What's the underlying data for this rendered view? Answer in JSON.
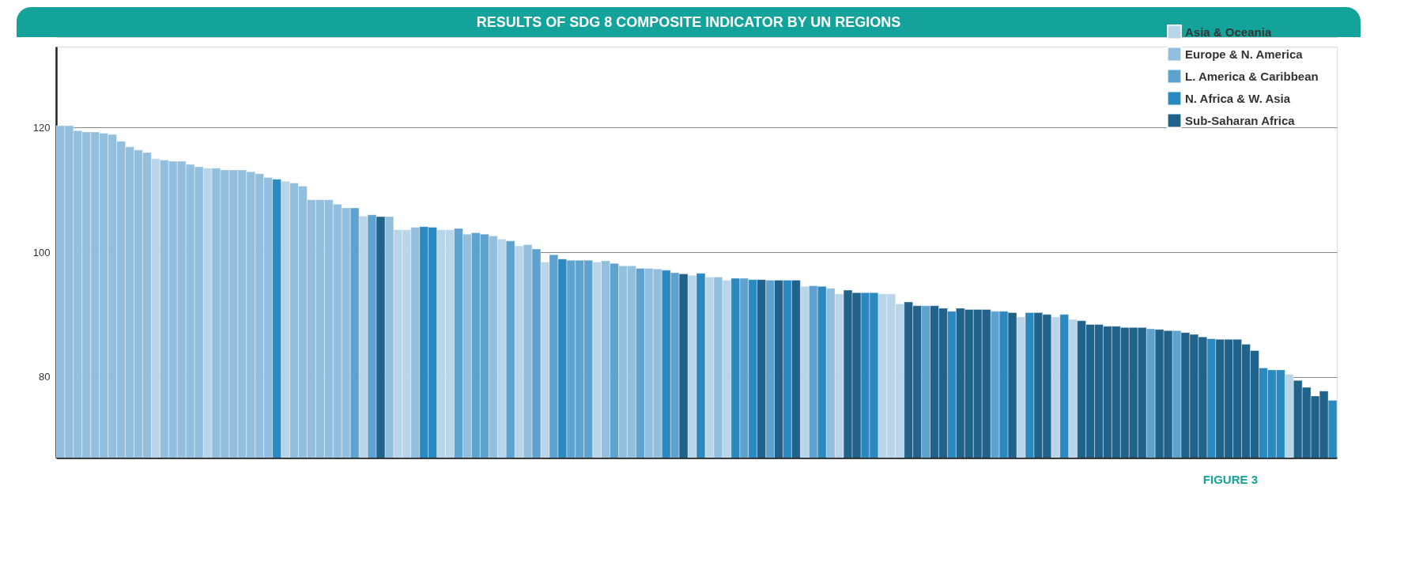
{
  "chart_data": {
    "type": "bar",
    "title": "RESULTS OF SDG 8 COMPOSITE INDICATOR BY UN REGIONS",
    "annotations": [
      "FIGURE 3"
    ],
    "categories": [
      null,
      null,
      null,
      null,
      null,
      null,
      null,
      null,
      null,
      null,
      null,
      null,
      null,
      null,
      null,
      null,
      null,
      null,
      null,
      null,
      null,
      null,
      null,
      null,
      null,
      null,
      null,
      null,
      null,
      null,
      null,
      null,
      null,
      null,
      null,
      null,
      null,
      null,
      null,
      null,
      null,
      null,
      null,
      null,
      null,
      null,
      null,
      null,
      null,
      null,
      null,
      null,
      null,
      null,
      null,
      null,
      null,
      null,
      null,
      null,
      null,
      null,
      null,
      null,
      null,
      null,
      null,
      null,
      null,
      null,
      null,
      null,
      null,
      null,
      null,
      null,
      null,
      null,
      null,
      null,
      null,
      null,
      null,
      null,
      null,
      null,
      null,
      null,
      null,
      null,
      null,
      null,
      null,
      null,
      null,
      null,
      null,
      null,
      null,
      null,
      null,
      null,
      null,
      null,
      null,
      null,
      null,
      null,
      null,
      null,
      null,
      null,
      null,
      null,
      null,
      null,
      null,
      null,
      null,
      null,
      null,
      null,
      null,
      null,
      null,
      null,
      null,
      null,
      null,
      null,
      null,
      null,
      null,
      null,
      null,
      null,
      null,
      null,
      null,
      null,
      null,
      null,
      null,
      null,
      null,
      null,
      null,
      null
    ],
    "series": [
      {
        "name": "Asia & Oceania",
        "color": "#b9d5ea",
        "values": [
          null,
          null,
          null,
          null,
          null,
          null,
          null,
          null,
          null,
          null,
          null,
          115.0,
          null,
          null,
          null,
          null,
          null,
          113.5,
          null,
          null,
          null,
          null,
          null,
          null,
          null,
          null,
          111.4,
          null,
          null,
          null,
          null,
          null,
          null,
          null,
          null,
          105.8,
          null,
          null,
          null,
          103.6,
          103.6,
          null,
          null,
          null,
          103.6,
          103.6,
          null,
          null,
          null,
          null,
          null,
          102.1,
          null,
          101.0,
          null,
          null,
          98.4,
          null,
          null,
          null,
          null,
          null,
          98.4,
          null,
          null,
          null,
          null,
          null,
          null,
          null,
          null,
          null,
          null,
          96.3,
          null,
          96.0,
          null,
          95.5,
          null,
          null,
          null,
          null,
          null,
          null,
          null,
          null,
          94.5,
          null,
          null,
          null,
          93.3,
          null,
          null,
          null,
          null,
          93.3,
          93.3,
          91.7,
          null,
          null,
          null,
          null,
          null,
          null,
          null,
          null,
          null,
          null,
          null,
          null,
          null,
          89.6,
          null,
          null,
          null,
          89.6,
          null,
          89.2,
          null,
          null,
          null,
          null,
          null,
          null,
          null,
          null,
          null,
          null,
          null,
          null,
          null,
          null,
          null,
          null,
          null,
          null,
          null,
          null,
          null,
          null,
          null,
          null,
          80.4,
          null,
          null,
          null,
          null,
          null
        ]
      },
      {
        "name": "Europe & N. America",
        "color": "#92bfde",
        "values": [
          120.3,
          120.3,
          119.5,
          119.3,
          119.3,
          119.1,
          118.9,
          117.8,
          116.9,
          116.4,
          116.0,
          null,
          114.8,
          114.6,
          114.6,
          114.1,
          113.7,
          null,
          113.5,
          113.2,
          113.2,
          113.2,
          112.9,
          112.6,
          112.0,
          null,
          null,
          111.1,
          110.6,
          108.4,
          108.4,
          108.4,
          107.7,
          107.1,
          null,
          null,
          null,
          null,
          105.7,
          null,
          null,
          104.0,
          null,
          null,
          null,
          null,
          null,
          102.9,
          null,
          null,
          102.6,
          null,
          null,
          null,
          101.2,
          null,
          null,
          null,
          null,
          null,
          null,
          null,
          null,
          98.6,
          null,
          97.8,
          97.8,
          null,
          97.4,
          97.3,
          null,
          null,
          null,
          null,
          null,
          null,
          96.0,
          null,
          null,
          null,
          null,
          null,
          null,
          null,
          null,
          null,
          null,
          null,
          null,
          94.2,
          null,
          null,
          null,
          null,
          null,
          null,
          null,
          null,
          null,
          null,
          null,
          null,
          null,
          null,
          null,
          null,
          null,
          null,
          null,
          null,
          null,
          null,
          null,
          null,
          null,
          null,
          null,
          null,
          null,
          null,
          null,
          null,
          null,
          null,
          null,
          null,
          null,
          null,
          null,
          null,
          null,
          null,
          null,
          null,
          null,
          null,
          null,
          null,
          null,
          null,
          null,
          null,
          null,
          null,
          null,
          null,
          null,
          null
        ]
      },
      {
        "name": "L. America & Caribbean",
        "color": "#5ea3cf",
        "values": [
          null,
          null,
          null,
          null,
          null,
          null,
          null,
          null,
          null,
          null,
          null,
          null,
          null,
          null,
          null,
          null,
          null,
          null,
          null,
          null,
          null,
          null,
          null,
          null,
          null,
          null,
          null,
          null,
          null,
          null,
          null,
          null,
          null,
          null,
          107.1,
          null,
          106.0,
          null,
          null,
          null,
          null,
          null,
          null,
          null,
          null,
          null,
          103.8,
          null,
          103.1,
          102.9,
          null,
          null,
          101.8,
          null,
          null,
          100.5,
          null,
          99.6,
          null,
          98.7,
          98.7,
          98.7,
          null,
          null,
          98.2,
          null,
          null,
          97.4,
          null,
          null,
          null,
          96.7,
          null,
          null,
          null,
          null,
          null,
          null,
          null,
          95.8,
          null,
          null,
          95.5,
          null,
          null,
          null,
          null,
          94.6,
          null,
          null,
          null,
          null,
          null,
          null,
          null,
          null,
          null,
          null,
          null,
          null,
          91.4,
          null,
          null,
          null,
          null,
          null,
          null,
          null,
          90.5,
          null,
          null,
          null,
          null,
          null,
          null,
          null,
          null,
          null,
          null,
          null,
          null,
          null,
          null,
          null,
          null,
          null,
          87.7,
          null,
          null,
          87.4,
          null,
          null,
          null,
          null,
          null,
          null,
          null,
          null,
          null,
          null,
          null,
          null,
          null,
          null,
          null,
          null,
          null,
          null
        ]
      },
      {
        "name": "N. Africa & W. Asia",
        "color": "#2b89c0",
        "values": [
          null,
          null,
          null,
          null,
          null,
          null,
          null,
          null,
          null,
          null,
          null,
          null,
          null,
          null,
          null,
          null,
          null,
          null,
          null,
          null,
          null,
          null,
          null,
          null,
          null,
          111.7,
          null,
          null,
          null,
          null,
          null,
          null,
          null,
          null,
          null,
          null,
          null,
          null,
          null,
          null,
          null,
          null,
          104.1,
          104.0,
          null,
          null,
          null,
          null,
          null,
          null,
          null,
          null,
          null,
          null,
          null,
          null,
          null,
          null,
          98.9,
          null,
          null,
          null,
          null,
          null,
          null,
          null,
          null,
          null,
          null,
          null,
          97.1,
          null,
          null,
          null,
          96.6,
          null,
          null,
          null,
          95.8,
          null,
          95.6,
          null,
          null,
          null,
          95.5,
          null,
          null,
          null,
          94.5,
          null,
          null,
          null,
          null,
          93.5,
          93.5,
          null,
          null,
          null,
          null,
          null,
          null,
          null,
          null,
          90.5,
          null,
          null,
          null,
          null,
          null,
          90.5,
          null,
          null,
          90.3,
          null,
          null,
          null,
          90.0,
          null,
          null,
          null,
          null,
          null,
          null,
          null,
          null,
          null,
          null,
          null,
          null,
          null,
          null,
          null,
          null,
          86.1,
          null,
          null,
          null,
          null,
          null,
          81.4,
          81.1,
          81.1,
          null,
          null,
          null,
          null,
          null,
          76.2
        ]
      },
      {
        "name": "Sub-Saharan Africa",
        "color": "#21628a",
        "values": [
          null,
          null,
          null,
          null,
          null,
          null,
          null,
          null,
          null,
          null,
          null,
          null,
          null,
          null,
          null,
          null,
          null,
          null,
          null,
          null,
          null,
          null,
          null,
          null,
          null,
          null,
          null,
          null,
          null,
          null,
          null,
          null,
          null,
          null,
          null,
          null,
          null,
          105.7,
          null,
          null,
          null,
          null,
          null,
          null,
          null,
          null,
          null,
          null,
          null,
          null,
          null,
          null,
          null,
          null,
          null,
          null,
          null,
          null,
          null,
          null,
          null,
          null,
          null,
          null,
          null,
          null,
          null,
          null,
          null,
          null,
          null,
          null,
          96.5,
          null,
          null,
          null,
          null,
          null,
          null,
          null,
          null,
          95.6,
          null,
          95.5,
          null,
          95.5,
          null,
          null,
          null,
          null,
          null,
          93.9,
          93.5,
          null,
          null,
          null,
          null,
          null,
          92.0,
          91.4,
          null,
          91.4,
          91.0,
          null,
          91.0,
          90.8,
          90.8,
          90.8,
          null,
          null,
          90.3,
          null,
          null,
          90.3,
          90.0,
          null,
          null,
          null,
          89.0,
          88.4,
          88.4,
          88.1,
          88.1,
          87.9,
          87.9,
          87.9,
          null,
          87.6,
          87.4,
          null,
          87.1,
          86.8,
          86.4,
          null,
          86.0,
          86.0,
          86.0,
          85.2,
          84.2,
          null,
          null,
          null,
          null,
          79.4,
          78.3,
          76.9,
          77.7,
          null
        ]
      }
    ],
    "ylim": [
      67,
      133
    ],
    "yticks": [
      80,
      100,
      120
    ],
    "grid": "y",
    "legend": "top right",
    "tick_labels": "y"
  }
}
